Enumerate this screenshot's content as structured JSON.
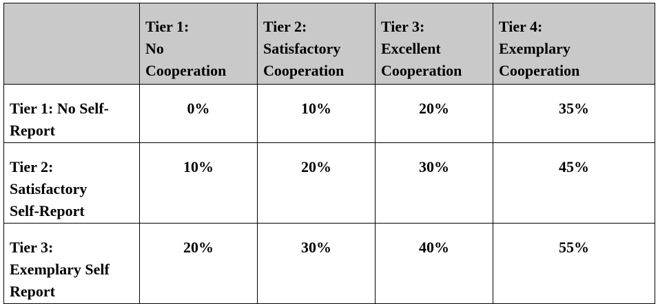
{
  "table": {
    "columns": [
      "Tier 1:\nNo\nCooperation",
      "Tier 2:\nSatisfactory\nCooperation",
      "Tier 3:\nExcellent\nCooperation",
      "Tier 4:\nExemplary\nCooperation"
    ],
    "rows": [
      {
        "label": "Tier 1: No Self-\nReport",
        "values": [
          "0%",
          "10%",
          "20%",
          "35%"
        ]
      },
      {
        "label": "Tier 2:\nSatisfactory\nSelf-Report",
        "values": [
          "10%",
          "20%",
          "30%",
          "45%"
        ]
      },
      {
        "label": "Tier 3:\nExemplary Self\nReport",
        "values": [
          "20%",
          "30%",
          "40%",
          "55%"
        ]
      }
    ]
  }
}
